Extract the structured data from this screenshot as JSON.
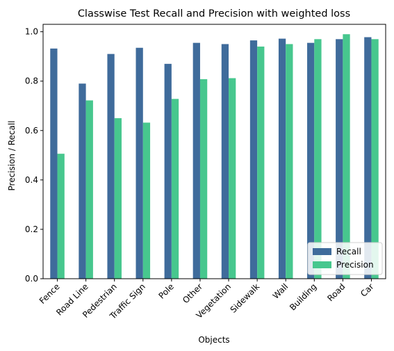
{
  "chart_data": {
    "type": "bar",
    "title": "Classwise Test Recall and Precision with weighted loss",
    "xlabel": "Objects",
    "ylabel": "Precision / Recall",
    "ylim": [
      0,
      1.03
    ],
    "yticks": [
      0.0,
      0.2,
      0.4,
      0.6,
      0.8,
      1.0
    ],
    "ytick_labels": [
      "0.0",
      "0.2",
      "0.4",
      "0.6",
      "0.8",
      "1.0"
    ],
    "legend_position": "lower-right",
    "grid": false,
    "categories": [
      "Fence",
      "Road Line",
      "Pedestrian",
      "Traffic Sign",
      "Pole",
      "Other",
      "Vegetation",
      "Sidewalk",
      "Wall",
      "Building",
      "Road",
      "Car"
    ],
    "series": [
      {
        "name": "Recall",
        "color": "#3f6b9b",
        "values": [
          0.932,
          0.79,
          0.91,
          0.935,
          0.87,
          0.955,
          0.95,
          0.965,
          0.972,
          0.955,
          0.97,
          0.978
        ]
      },
      {
        "name": "Precision",
        "color": "#47c78e",
        "values": [
          0.506,
          0.722,
          0.65,
          0.632,
          0.728,
          0.808,
          0.812,
          0.94,
          0.95,
          0.97,
          0.99,
          0.97
        ]
      }
    ]
  }
}
